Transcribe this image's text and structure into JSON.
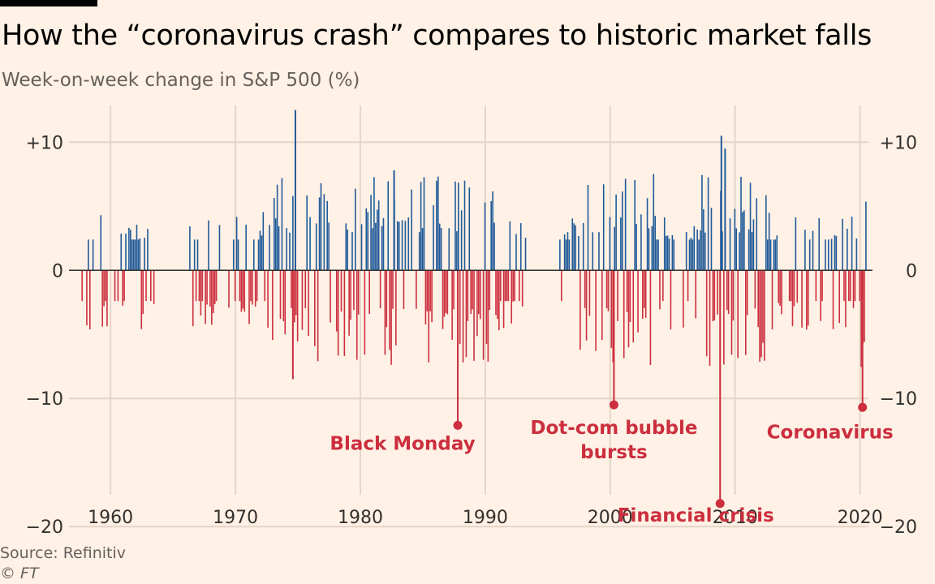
{
  "header": {
    "title": "How the “coronavirus crash” compares to historic market falls",
    "subtitle": "Week-on-week change in S&P 500 (%)"
  },
  "footer": {
    "source": "Source: Refinitiv",
    "credit": "© FT"
  },
  "colors": {
    "positive": "#1F5A99",
    "negative": "#CC2E3E",
    "axis": "#33302E",
    "grid": "#E3D6C9"
  },
  "chart_data": {
    "type": "bar",
    "xlim": [
      1957.0,
      2021.0
    ],
    "ylim": [
      -21,
      13.5
    ],
    "grid": true,
    "x_ticks": [
      1960,
      1970,
      1980,
      1990,
      2000,
      2010,
      2020
    ],
    "y_ticks": [
      10,
      0,
      -10,
      -20
    ],
    "y_tick_labels": [
      "+10",
      "0",
      "−10",
      "−20"
    ],
    "peak_bars": [
      {
        "x": 1974.8,
        "y": 12.5
      },
      {
        "x": 2008.9,
        "y": 10.5
      },
      {
        "x": 2009.2,
        "y": 9.5
      },
      {
        "x": 1982.7,
        "y": 7.8
      },
      {
        "x": 1974.6,
        "y": -8.5
      },
      {
        "x": 1987.8,
        "y": -12.1
      },
      {
        "x": 2000.3,
        "y": -10.5
      },
      {
        "x": 2008.8,
        "y": -18.2
      },
      {
        "x": 2020.2,
        "y": -10.7
      }
    ],
    "annotations": [
      {
        "label": "Black Monday",
        "x": 1987.8,
        "y": -12.1
      },
      {
        "label": "Dot-com bubble",
        "label2": "bursts",
        "x": 2000.3,
        "y": -10.5
      },
      {
        "label": "Financial crisis",
        "x": 2008.8,
        "y": -18.2
      },
      {
        "label": "Coronavirus",
        "x": 2020.2,
        "y": -10.7
      }
    ]
  }
}
